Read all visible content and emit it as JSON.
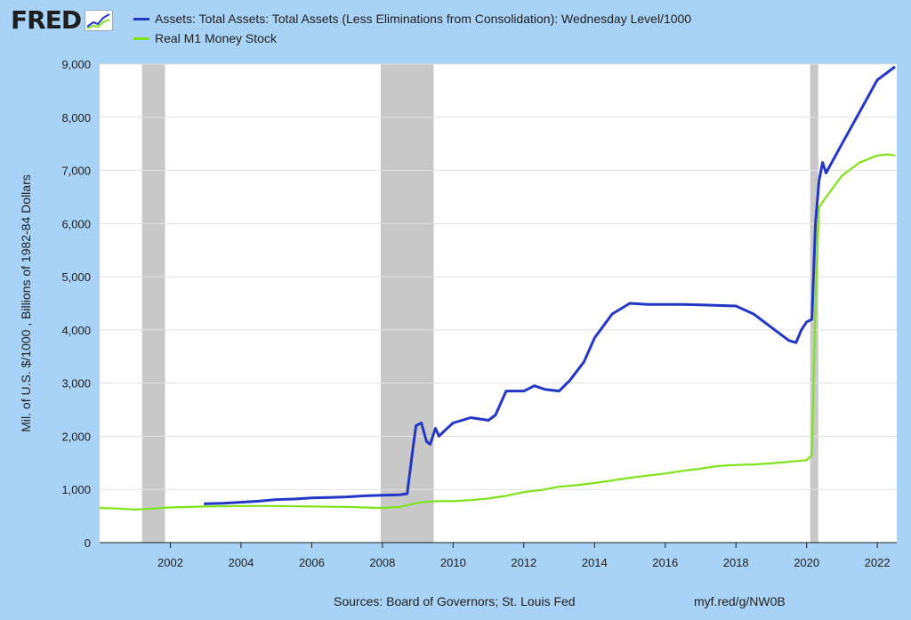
{
  "header": {
    "logo_text": "FRED",
    "logo_mark": "®"
  },
  "legend": [
    {
      "label": "Assets: Total Assets: Total Assets (Less Eliminations from Consolidation): Wednesday Level/1000",
      "color": "#2337c6"
    },
    {
      "label": "Real M1 Money Stock",
      "color": "#7fe31a"
    }
  ],
  "footer": {
    "source": "Sources: Board of Governors; St. Louis Fed",
    "link": "myf.red/g/NW0B"
  },
  "chart_data": {
    "type": "line",
    "title": "",
    "xlabel": "",
    "ylabel": "Mil. of U.S. $/1000 , Billions of 1982-84 Dollars",
    "xlim": [
      2000.0,
      2022.55
    ],
    "ylim": [
      0,
      9000
    ],
    "x_ticks": [
      2002,
      2004,
      2006,
      2008,
      2010,
      2012,
      2014,
      2016,
      2018,
      2020,
      2022
    ],
    "y_ticks": [
      0,
      1000,
      2000,
      3000,
      4000,
      5000,
      6000,
      7000,
      8000,
      9000
    ],
    "y_tick_labels": [
      "0",
      "1,000",
      "2,000",
      "3,000",
      "4,000",
      "5,000",
      "6,000",
      "7,000",
      "8,000",
      "9,000"
    ],
    "grid": true,
    "recessions": [
      [
        2001.2,
        2001.85
      ],
      [
        2007.95,
        2009.45
      ],
      [
        2020.1,
        2020.33
      ]
    ],
    "series": [
      {
        "name": "Assets: Total Assets: Total Assets (Less Eliminations from Consolidation): Wednesday Level/1000",
        "color": "#2337c6",
        "points": [
          [
            2002.95,
            730
          ],
          [
            2003.5,
            740
          ],
          [
            2004.0,
            760
          ],
          [
            2004.5,
            780
          ],
          [
            2005.0,
            810
          ],
          [
            2005.5,
            820
          ],
          [
            2006.0,
            840
          ],
          [
            2006.5,
            850
          ],
          [
            2007.0,
            860
          ],
          [
            2007.5,
            880
          ],
          [
            2008.0,
            890
          ],
          [
            2008.5,
            900
          ],
          [
            2008.7,
            920
          ],
          [
            2008.85,
            1700
          ],
          [
            2008.95,
            2200
          ],
          [
            2009.1,
            2250
          ],
          [
            2009.25,
            1900
          ],
          [
            2009.35,
            1850
          ],
          [
            2009.5,
            2150
          ],
          [
            2009.6,
            2000
          ],
          [
            2009.75,
            2100
          ],
          [
            2010.0,
            2250
          ],
          [
            2010.5,
            2350
          ],
          [
            2011.0,
            2300
          ],
          [
            2011.2,
            2400
          ],
          [
            2011.5,
            2850
          ],
          [
            2012.0,
            2850
          ],
          [
            2012.3,
            2950
          ],
          [
            2012.6,
            2880
          ],
          [
            2013.0,
            2850
          ],
          [
            2013.3,
            3050
          ],
          [
            2013.7,
            3400
          ],
          [
            2014.0,
            3850
          ],
          [
            2014.5,
            4300
          ],
          [
            2015.0,
            4500
          ],
          [
            2015.5,
            4480
          ],
          [
            2016.0,
            4480
          ],
          [
            2016.5,
            4480
          ],
          [
            2017.0,
            4470
          ],
          [
            2017.5,
            4460
          ],
          [
            2018.0,
            4450
          ],
          [
            2018.5,
            4300
          ],
          [
            2019.0,
            4050
          ],
          [
            2019.5,
            3800
          ],
          [
            2019.7,
            3760
          ],
          [
            2019.85,
            4000
          ],
          [
            2020.0,
            4150
          ],
          [
            2020.15,
            4200
          ],
          [
            2020.25,
            6000
          ],
          [
            2020.35,
            6800
          ],
          [
            2020.45,
            7150
          ],
          [
            2020.55,
            6950
          ],
          [
            2021.0,
            7500
          ],
          [
            2021.5,
            8100
          ],
          [
            2022.0,
            8700
          ],
          [
            2022.5,
            8950
          ]
        ]
      },
      {
        "name": "Real M1 Money Stock",
        "color": "#7fe31a",
        "points": [
          [
            2000.0,
            650
          ],
          [
            2000.5,
            640
          ],
          [
            2001.0,
            620
          ],
          [
            2001.5,
            640
          ],
          [
            2002.0,
            660
          ],
          [
            2002.5,
            670
          ],
          [
            2003.0,
            680
          ],
          [
            2004.0,
            690
          ],
          [
            2005.0,
            690
          ],
          [
            2006.0,
            680
          ],
          [
            2007.0,
            670
          ],
          [
            2008.0,
            650
          ],
          [
            2008.5,
            670
          ],
          [
            2009.0,
            750
          ],
          [
            2009.5,
            780
          ],
          [
            2010.0,
            780
          ],
          [
            2010.5,
            800
          ],
          [
            2011.0,
            830
          ],
          [
            2011.5,
            880
          ],
          [
            2012.0,
            950
          ],
          [
            2012.5,
            990
          ],
          [
            2013.0,
            1050
          ],
          [
            2013.5,
            1080
          ],
          [
            2014.0,
            1120
          ],
          [
            2014.5,
            1170
          ],
          [
            2015.0,
            1220
          ],
          [
            2015.5,
            1260
          ],
          [
            2016.0,
            1300
          ],
          [
            2016.5,
            1350
          ],
          [
            2017.0,
            1390
          ],
          [
            2017.5,
            1440
          ],
          [
            2018.0,
            1460
          ],
          [
            2018.5,
            1470
          ],
          [
            2019.0,
            1490
          ],
          [
            2019.5,
            1520
          ],
          [
            2020.0,
            1550
          ],
          [
            2020.15,
            1650
          ],
          [
            2020.25,
            4500
          ],
          [
            2020.35,
            6300
          ],
          [
            2020.5,
            6450
          ],
          [
            2021.0,
            6900
          ],
          [
            2021.5,
            7150
          ],
          [
            2022.0,
            7280
          ],
          [
            2022.3,
            7300
          ],
          [
            2022.5,
            7280
          ]
        ]
      }
    ]
  }
}
